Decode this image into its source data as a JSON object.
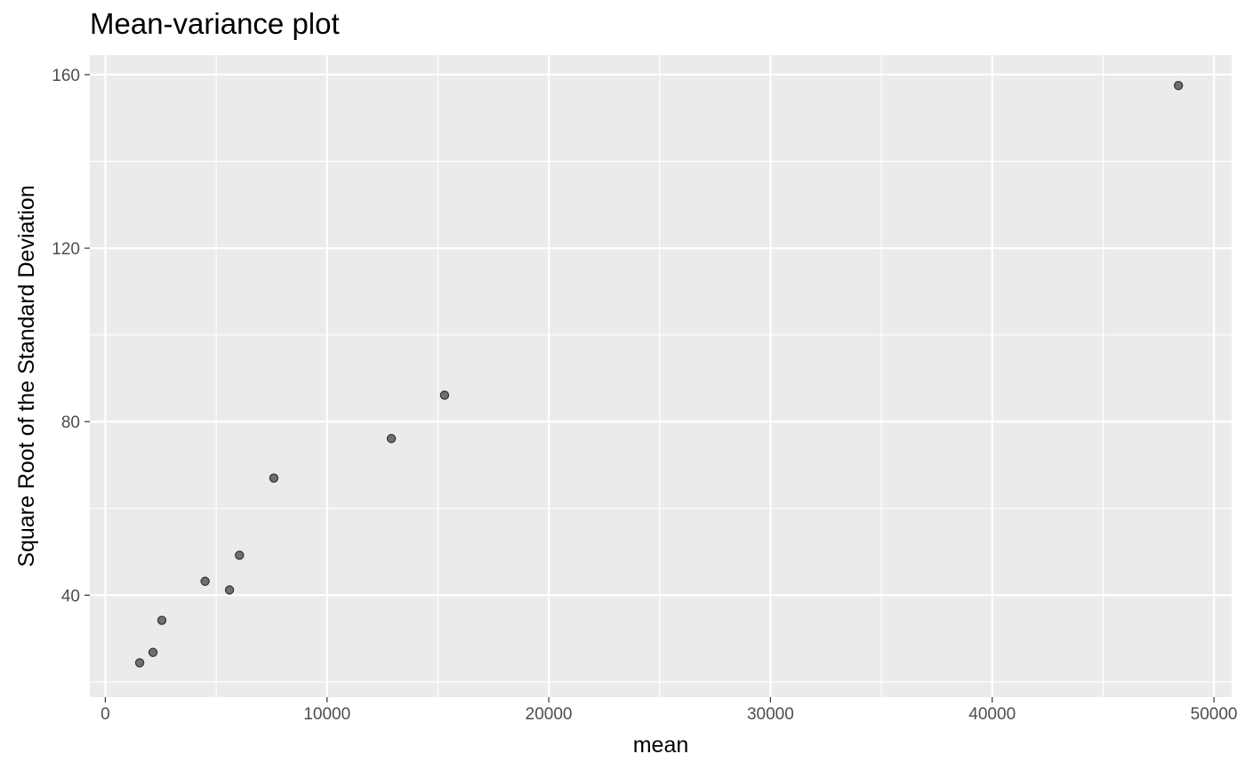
{
  "chart_data": {
    "type": "scatter",
    "title": "Mean-variance plot",
    "xlabel": "mean",
    "ylabel": "Square Root of the Standard Deviation",
    "xlim": [
      -700,
      50800
    ],
    "ylim": [
      16.5,
      164.5
    ],
    "x_ticks": [
      0,
      10000,
      20000,
      30000,
      40000,
      50000
    ],
    "x_tick_labels": [
      "0",
      "10000",
      "20000",
      "30000",
      "40000",
      "50000"
    ],
    "x_minor_ticks": [
      5000,
      15000,
      25000,
      35000,
      45000
    ],
    "y_ticks": [
      40,
      80,
      120,
      160
    ],
    "y_tick_labels": [
      "40",
      "80",
      "120",
      "160"
    ],
    "y_minor_ticks": [
      20,
      60,
      100,
      140
    ],
    "grid": true,
    "legend": "none",
    "colors": {
      "panel": "#ebebeb",
      "grid": "#ffffff",
      "point_fill": "#595959",
      "point_stroke": "#333333",
      "tick_text": "#4d4d4d",
      "tick_mark": "#333333"
    },
    "points": [
      {
        "x": 1550,
        "y": 24.4
      },
      {
        "x": 2150,
        "y": 26.8
      },
      {
        "x": 2550,
        "y": 34.2
      },
      {
        "x": 4500,
        "y": 43.2
      },
      {
        "x": 5600,
        "y": 41.2
      },
      {
        "x": 6050,
        "y": 49.2
      },
      {
        "x": 7600,
        "y": 67.0
      },
      {
        "x": 12900,
        "y": 76.1
      },
      {
        "x": 15300,
        "y": 86.1
      },
      {
        "x": 48400,
        "y": 157.5
      }
    ]
  }
}
